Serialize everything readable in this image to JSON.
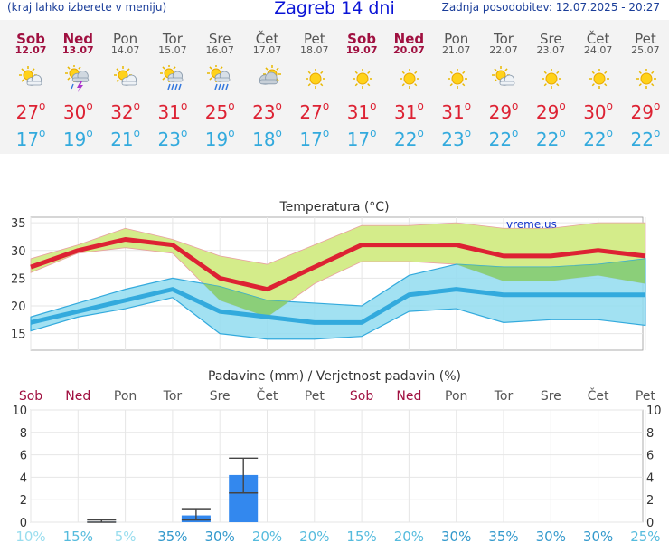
{
  "header": {
    "menu_hint": "(kraj lahko izberete v meniju)",
    "title": "Zagreb 14 dni",
    "updated": "Zadnja posodobitev: 12.07.2025 - 20:27"
  },
  "days": [
    {
      "name": "Sob",
      "date": "12.07",
      "weekend": true,
      "icon": "sun-cloud-icon",
      "max": "27",
      "min": "17"
    },
    {
      "name": "Ned",
      "date": "13.07",
      "weekend": true,
      "icon": "thunderstorm-icon",
      "max": "30",
      "min": "19"
    },
    {
      "name": "Pon",
      "date": "14.07",
      "weekend": false,
      "icon": "sun-cloud-icon",
      "max": "32",
      "min": "21"
    },
    {
      "name": "Tor",
      "date": "15.07",
      "weekend": false,
      "icon": "sun-rain-icon",
      "max": "31",
      "min": "23"
    },
    {
      "name": "Sre",
      "date": "16.07",
      "weekend": false,
      "icon": "sun-rain-icon",
      "max": "25",
      "min": "19"
    },
    {
      "name": "Čet",
      "date": "17.07",
      "weekend": false,
      "icon": "cloud-sun-icon",
      "max": "23",
      "min": "18"
    },
    {
      "name": "Pet",
      "date": "18.07",
      "weekend": false,
      "icon": "sun-icon",
      "max": "27",
      "min": "17"
    },
    {
      "name": "Sob",
      "date": "19.07",
      "weekend": true,
      "icon": "sun-icon",
      "max": "31",
      "min": "17"
    },
    {
      "name": "Ned",
      "date": "20.07",
      "weekend": true,
      "icon": "sun-icon",
      "max": "31",
      "min": "22"
    },
    {
      "name": "Pon",
      "date": "21.07",
      "weekend": false,
      "icon": "sun-icon",
      "max": "31",
      "min": "23"
    },
    {
      "name": "Tor",
      "date": "22.07",
      "weekend": false,
      "icon": "sun-cloud-icon",
      "max": "29",
      "min": "22"
    },
    {
      "name": "Sre",
      "date": "23.07",
      "weekend": false,
      "icon": "sun-icon",
      "max": "29",
      "min": "22"
    },
    {
      "name": "Čet",
      "date": "24.07",
      "weekend": false,
      "icon": "sun-icon",
      "max": "30",
      "min": "22"
    },
    {
      "name": "Pet",
      "date": "25.07",
      "weekend": false,
      "icon": "sun-icon",
      "max": "29",
      "min": "22"
    }
  ],
  "colors": {
    "max_temp": "#dd2233",
    "min_temp": "#33aadd",
    "max_band": "#d4ec8a",
    "max_band_line": "#e8a0a0",
    "min_band": "#92dcf0",
    "min_band_line": "#33aadd",
    "overlap": "#88cc66",
    "precip_bar": "#3388ee",
    "weekend_day": "#a01040",
    "workday": "#555555",
    "prob_color": "#66ccee"
  },
  "chart_data": [
    {
      "type": "line",
      "title": "Temperatura (°C)",
      "watermark": "vreme.us",
      "x": [
        "Sob",
        "Ned",
        "Pon",
        "Tor",
        "Sre",
        "Čet",
        "Pet",
        "Sob",
        "Ned",
        "Pon",
        "Tor",
        "Sre",
        "Čet",
        "Pet"
      ],
      "ylim": [
        12,
        36
      ],
      "yticks": [
        15,
        20,
        25,
        30,
        35
      ],
      "grid": true,
      "series": [
        {
          "name": "max",
          "values": [
            27,
            30,
            32,
            31,
            25,
            23,
            27,
            31,
            31,
            31,
            29,
            29,
            30,
            29
          ],
          "low": [
            26,
            29.5,
            30.5,
            29.5,
            21,
            18,
            24,
            28,
            28,
            27.5,
            24.5,
            24.5,
            25.5,
            24
          ],
          "high": [
            28.5,
            31,
            34,
            32,
            29,
            27.5,
            31,
            34.5,
            34.5,
            35,
            34,
            34,
            35,
            35
          ]
        },
        {
          "name": "min",
          "values": [
            17,
            19,
            21,
            23,
            19,
            18,
            17,
            17,
            22,
            23,
            22,
            22,
            22,
            22
          ],
          "low": [
            15.5,
            18,
            19.5,
            21.5,
            15,
            14,
            14,
            14.5,
            19,
            19.5,
            17,
            17.5,
            17.5,
            16.5
          ],
          "high": [
            18,
            20.5,
            23,
            25,
            23.5,
            21,
            20.5,
            20,
            25.5,
            27.5,
            27,
            27,
            27.5,
            28.5
          ]
        }
      ]
    },
    {
      "type": "bar",
      "title": "Padavine (mm) / Verjetnost padavin (%)",
      "categories": [
        "Sob",
        "Ned",
        "Pon",
        "Tor",
        "Sre",
        "Čet",
        "Pet",
        "Sob",
        "Ned",
        "Pon",
        "Tor",
        "Sre",
        "Čet",
        "Pet"
      ],
      "weekend": [
        true,
        true,
        false,
        false,
        false,
        false,
        false,
        true,
        true,
        false,
        false,
        false,
        false,
        false
      ],
      "values": [
        0,
        0.05,
        0,
        0.6,
        4.2,
        0,
        0,
        0,
        0,
        0,
        0,
        0,
        0,
        0
      ],
      "err_low": [
        0,
        0,
        0,
        0.2,
        2.6,
        0,
        0,
        0,
        0,
        0,
        0,
        0,
        0,
        0
      ],
      "err_high": [
        0,
        0.2,
        0,
        1.2,
        5.7,
        0,
        0,
        0,
        0,
        0,
        0,
        0,
        0,
        0
      ],
      "probability": [
        "10%",
        "15%",
        "5%",
        "35%",
        "30%",
        "20%",
        "20%",
        "15%",
        "20%",
        "30%",
        "35%",
        "30%",
        "30%",
        "25%"
      ],
      "ylim": [
        0,
        10
      ],
      "yticks": [
        0,
        2,
        4,
        6,
        8,
        10
      ],
      "grid": true
    }
  ]
}
